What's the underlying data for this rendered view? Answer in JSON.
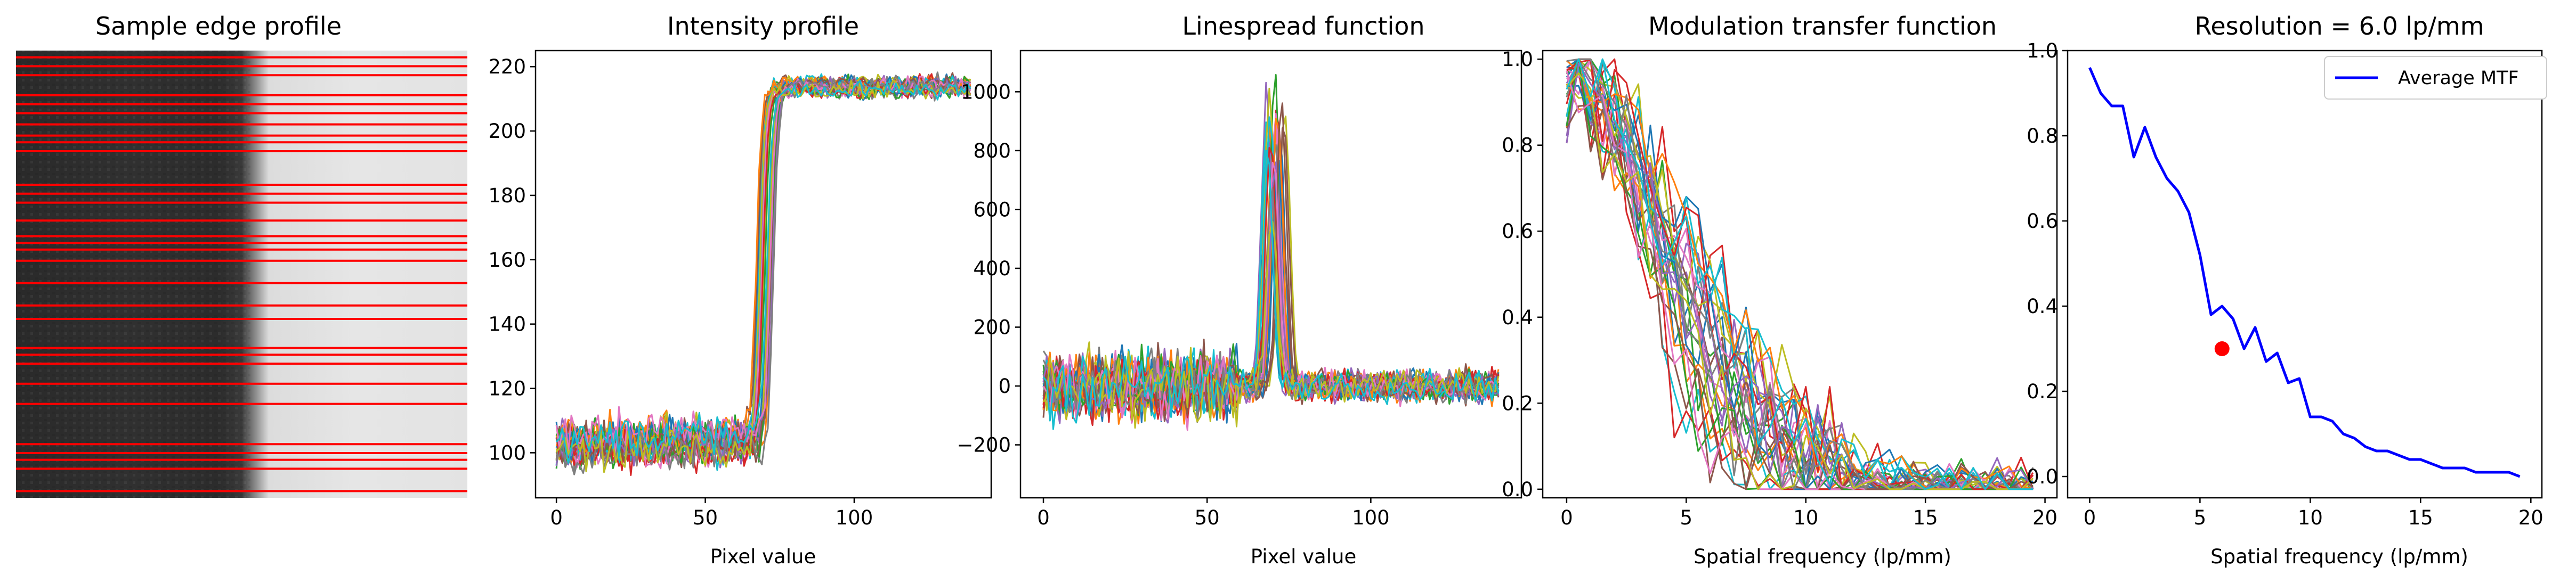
{
  "figure": {
    "panels": [
      {
        "title": "Sample edge profile"
      },
      {
        "title": "Intensity profile"
      },
      {
        "title": "Linespread function"
      },
      {
        "title": "Modulation transfer function"
      },
      {
        "title": "Resolution = 6.0 lp/mm"
      }
    ]
  },
  "colors": {
    "tab10": [
      "#1f77b4",
      "#ff7f0e",
      "#2ca02c",
      "#d62728",
      "#9467bd",
      "#8c564b",
      "#e377c2",
      "#7f7f7f",
      "#bcbd22",
      "#17becf"
    ],
    "average_mtf": "#0000ff",
    "marker": "#ff0000",
    "scanlines": "#ff0000"
  },
  "chart_data": [
    {
      "type": "image",
      "title": "Sample edge profile",
      "description_of_content": "grayscale edge image, dark left region and bright right region, overlaid with red horizontal sampling lines",
      "edge_position_fraction": 0.52,
      "scanline_fractions": [
        0.015,
        0.035,
        0.055,
        0.1,
        0.12,
        0.14,
        0.165,
        0.19,
        0.205,
        0.225,
        0.3,
        0.32,
        0.34,
        0.38,
        0.415,
        0.43,
        0.445,
        0.47,
        0.52,
        0.57,
        0.6,
        0.665,
        0.68,
        0.7,
        0.745,
        0.79,
        0.88,
        0.9,
        0.915,
        0.935,
        0.985
      ]
    },
    {
      "type": "line",
      "title": "Intensity profile",
      "xlabel": "Pixel value",
      "ylabel": "",
      "xlim": [
        -7,
        146
      ],
      "ylim": [
        86,
        225
      ],
      "xticks": [
        0,
        50,
        100
      ],
      "yticks": [
        100,
        120,
        140,
        160,
        180,
        200,
        220
      ],
      "n_series": 30,
      "x_range": [
        0,
        139
      ],
      "low_level": 103,
      "high_level": 214,
      "edge_center_range": [
        67,
        73
      ],
      "grid": false
    },
    {
      "type": "line",
      "title": "Linespread function",
      "xlabel": "Pixel value",
      "ylabel": "",
      "xlim": [
        -7,
        146
      ],
      "ylim": [
        -380,
        1140
      ],
      "xticks": [
        0,
        50,
        100
      ],
      "yticks": [
        -200,
        0,
        200,
        400,
        600,
        800,
        1000
      ],
      "n_series": 30,
      "x_range": [
        0,
        139
      ],
      "peak_range": [
        600,
        1080
      ],
      "peak_center": 71,
      "grid": false
    },
    {
      "type": "line",
      "title": "Modulation transfer function",
      "xlabel": "Spatial frequency (lp/mm)",
      "ylabel": "",
      "xlim": [
        -1.0,
        20.5
      ],
      "ylim": [
        -0.02,
        1.02
      ],
      "xticks": [
        0,
        5,
        10,
        15,
        20
      ],
      "yticks": [
        0.0,
        0.2,
        0.4,
        0.6,
        0.8,
        1.0
      ],
      "n_series": 30,
      "x_range": [
        0,
        19.5
      ],
      "grid": false
    },
    {
      "type": "line",
      "title": "Resolution = 6.0 lp/mm",
      "xlabel": "Spatial frequency (lp/mm)",
      "ylabel": "",
      "xlim": [
        -1.0,
        20.5
      ],
      "ylim": [
        -0.05,
        1.0
      ],
      "xticks": [
        0,
        5,
        10,
        15,
        20
      ],
      "yticks": [
        0.0,
        0.2,
        0.4,
        0.6,
        0.8,
        1.0
      ],
      "legend": {
        "position": "top-right",
        "entries": [
          "Average MTF"
        ]
      },
      "series": [
        {
          "name": "Average MTF",
          "x": [
            0,
            0.5,
            1,
            1.5,
            2,
            2.5,
            3,
            3.5,
            4,
            4.5,
            5,
            5.5,
            6,
            6.5,
            7,
            7.5,
            8,
            8.5,
            9,
            9.5,
            10,
            10.5,
            11,
            11.5,
            12,
            12.5,
            13,
            13.5,
            14,
            14.5,
            15,
            15.5,
            16,
            16.5,
            17,
            17.5,
            18,
            18.5,
            19,
            19.5
          ],
          "y": [
            0.96,
            0.9,
            0.87,
            0.87,
            0.75,
            0.82,
            0.75,
            0.7,
            0.67,
            0.62,
            0.52,
            0.38,
            0.4,
            0.37,
            0.3,
            0.35,
            0.27,
            0.29,
            0.22,
            0.23,
            0.14,
            0.14,
            0.13,
            0.1,
            0.09,
            0.07,
            0.06,
            0.06,
            0.05,
            0.04,
            0.04,
            0.03,
            0.02,
            0.02,
            0.02,
            0.01,
            0.01,
            0.01,
            0.01,
            0.0
          ]
        }
      ],
      "marker_point": {
        "x": 6.0,
        "y": 0.3
      },
      "grid": false
    }
  ]
}
